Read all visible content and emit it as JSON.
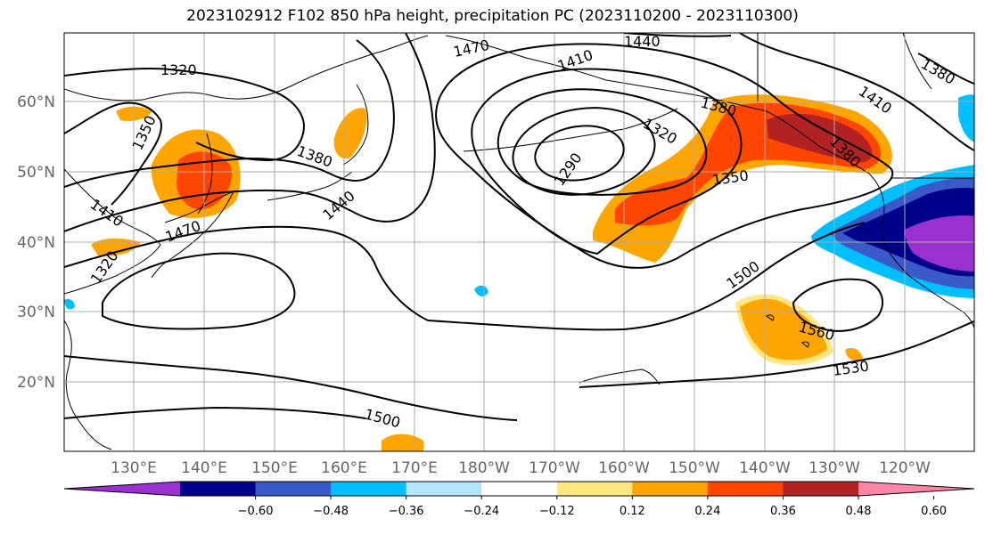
{
  "title": "2023102912 F102 850 hPa height, precipitation PC (2023110200 - 2023110300)",
  "lat_labels": [
    "60°N",
    "50°N",
    "40°N",
    "30°N",
    "20°N"
  ],
  "lon_labels": [
    "130°E",
    "140°E",
    "150°E",
    "160°E",
    "170°E",
    "180°W",
    "170°W",
    "160°W",
    "150°W",
    "140°W",
    "130°W",
    "120°W"
  ],
  "contour_labels": [
    "1320",
    "1470",
    "1440",
    "1410",
    "1380",
    "1350",
    "1380",
    "1440",
    "1410",
    "1470",
    "1320",
    "1290",
    "1380",
    "1350",
    "1410",
    "1380",
    "1500",
    "1560",
    "1530",
    "1500",
    "1320"
  ],
  "colorbar": {
    "colors": [
      "#9b30d0",
      "#00008b",
      "#3a5bc7",
      "#00bfff",
      "#b3e5fc",
      "#ffffff",
      "#ffe680",
      "#ffa500",
      "#ff4500",
      "#b22222",
      "#ff85a8"
    ],
    "ticks": [
      "-0.60",
      "-0.48",
      "-0.36",
      "-0.24",
      "-0.12",
      "0.12",
      "0.24",
      "0.36",
      "0.48",
      "0.60"
    ]
  }
}
